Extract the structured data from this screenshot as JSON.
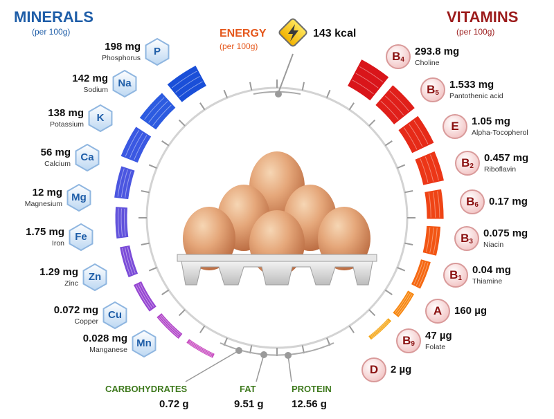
{
  "minerals": {
    "title": "MINERALS",
    "subtitle": "(per 100g)",
    "items": [
      {
        "symbol": "P",
        "amount": "198 mg",
        "name": "Phosphorus",
        "level": 1.0
      },
      {
        "symbol": "Na",
        "amount": "142 mg",
        "name": "Sodium",
        "level": 0.87
      },
      {
        "symbol": "K",
        "amount": "138 mg",
        "name": "Potassium",
        "level": 0.78
      },
      {
        "symbol": "Ca",
        "amount": "56 mg",
        "name": "Calcium",
        "level": 0.6
      },
      {
        "symbol": "Mg",
        "amount": "12 mg",
        "name": "Magnesium",
        "level": 0.5
      },
      {
        "symbol": "Fe",
        "amount": "1.75 mg",
        "name": "Iron",
        "level": 0.42
      },
      {
        "symbol": "Zn",
        "amount": "1.29 mg",
        "name": "Zinc",
        "level": 0.35
      },
      {
        "symbol": "Cu",
        "amount": "0.072 mg",
        "name": "Copper",
        "level": 0.25
      },
      {
        "symbol": "Mn",
        "amount": "0.028 mg",
        "name": "Manganese",
        "level": 0.17
      }
    ],
    "colors": [
      "#1a4fd8",
      "#2c5be0",
      "#3a58e2",
      "#4b56e0",
      "#6152dc",
      "#7b4cd8",
      "#9646d2",
      "#b044c8",
      "#c646be"
    ]
  },
  "vitamins": {
    "title": "VITAMINS",
    "subtitle": "(per 100g)",
    "items": [
      {
        "letter": "B",
        "sub": "4",
        "amount": "293.8 mg",
        "name": "Choline",
        "level": 1.0
      },
      {
        "letter": "B",
        "sub": "5",
        "amount": "1.533 mg",
        "name": "Pantothenic acid",
        "level": 0.88
      },
      {
        "letter": "E",
        "sub": "",
        "amount": "1.05 mg",
        "name": "Alpha-Tocopherol",
        "level": 0.8
      },
      {
        "letter": "B",
        "sub": "2",
        "amount": "0.457 mg",
        "name": "Riboflavin",
        "level": 0.7
      },
      {
        "letter": "B",
        "sub": "6",
        "amount": "0.17 mg",
        "name": "",
        "level": 0.55
      },
      {
        "letter": "B",
        "sub": "3",
        "amount": "0.075 mg",
        "name": "Niacin",
        "level": 0.45
      },
      {
        "letter": "B",
        "sub": "1",
        "amount": "0.04 mg",
        "name": "Thiamine",
        "level": 0.32
      },
      {
        "letter": "A",
        "sub": "",
        "amount": "160 µg",
        "name": "",
        "level": 0.22
      },
      {
        "letter": "B",
        "sub": "9",
        "amount": "47 µg",
        "name": "Folate",
        "level": 0.12
      },
      {
        "letter": "D",
        "sub": "",
        "amount": "2 µg",
        "name": "",
        "level": 0.0
      }
    ],
    "colors": [
      "#d9151a",
      "#e01f1a",
      "#e62a18",
      "#ec3617",
      "#ef4415",
      "#f25513",
      "#f56812",
      "#f7860f",
      "#f4a20d",
      "#f0b80c"
    ]
  },
  "energy": {
    "title": "ENERGY",
    "subtitle": "(per 100g)",
    "value": "143 kcal",
    "icon": "lightning-icon"
  },
  "macros": [
    {
      "name": "CARBOHYDRATES",
      "value": "0.72 g"
    },
    {
      "name": "FAT",
      "value": "9.51 g"
    },
    {
      "name": "PROTEIN",
      "value": "12.56 g"
    }
  ],
  "illustration": "eggs-in-carton"
}
